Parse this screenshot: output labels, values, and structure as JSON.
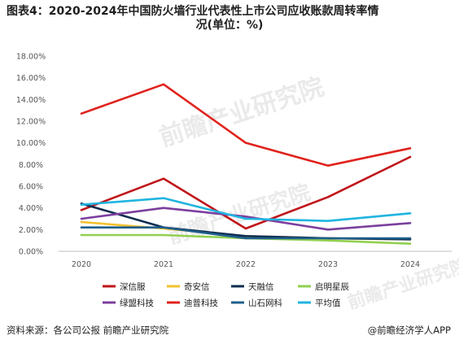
{
  "title": {
    "line1": "图表4：2020-2024年中国防火墙行业代表性上市公司应收账款周转率情",
    "line2": "况(单位：%)"
  },
  "chart_data": {
    "type": "line",
    "categories": [
      "2020",
      "2021",
      "2022",
      "2023",
      "2024"
    ],
    "y_ticks": [
      "0.00%",
      "2.00%",
      "4.00%",
      "6.00%",
      "8.00%",
      "10.00%",
      "12.00%",
      "14.00%",
      "16.00%",
      "18.00%"
    ],
    "ylim": [
      0,
      18
    ],
    "y_unit": "%",
    "grid": false,
    "legend_position": "bottom",
    "series": [
      {
        "name": "深信服",
        "color": "#c0151a",
        "values": [
          3.8,
          6.7,
          2.1,
          5.0,
          8.7
        ]
      },
      {
        "name": "奇安信",
        "color": "#f2c12e",
        "values": [
          2.7,
          2.1,
          1.4,
          1.2,
          1.1
        ]
      },
      {
        "name": "天融信",
        "color": "#0d2c4f",
        "values": [
          4.4,
          2.2,
          1.4,
          1.2,
          1.1
        ]
      },
      {
        "name": "启明星辰",
        "color": "#92d050",
        "values": [
          1.5,
          1.5,
          1.2,
          1.0,
          0.7
        ]
      },
      {
        "name": "绿盟科技",
        "color": "#7b3f9e",
        "values": [
          3.0,
          4.0,
          3.2,
          2.0,
          2.6
        ]
      },
      {
        "name": "迪普科技",
        "color": "#e0231d",
        "values": [
          12.7,
          15.4,
          10.0,
          7.9,
          9.5
        ]
      },
      {
        "name": "山石网科",
        "color": "#1f5f8b",
        "values": [
          2.2,
          2.2,
          1.2,
          1.2,
          1.2
        ]
      },
      {
        "name": "平均值",
        "color": "#1fb5e0",
        "values": [
          4.3,
          4.9,
          3.0,
          2.8,
          3.5
        ]
      }
    ]
  },
  "watermark": "前瞻产业研究院",
  "footer": {
    "source": "资料来源：各公司公报 前瞻产业研究院",
    "brand": "@前瞻经济学人APP"
  }
}
